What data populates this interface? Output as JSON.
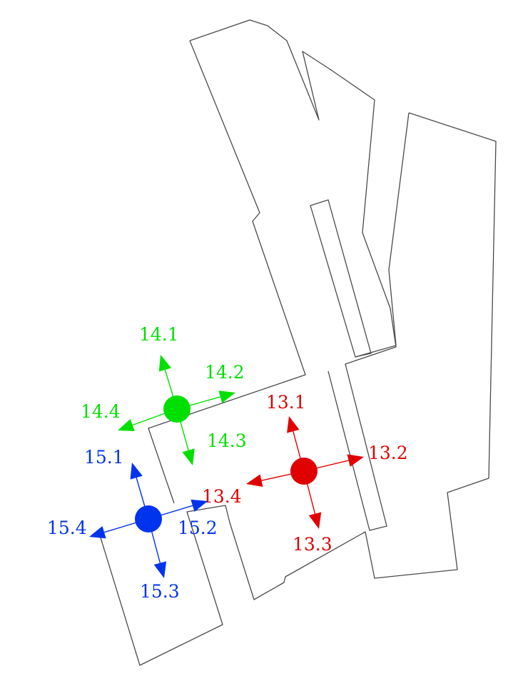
{
  "groups": [
    {
      "id": "13",
      "color": "#e00000",
      "arrows": [
        {
          "label": "13.1"
        },
        {
          "label": "13.2"
        },
        {
          "label": "13.3"
        },
        {
          "label": "13.4"
        }
      ]
    },
    {
      "id": "14",
      "color": "#00e000",
      "arrows": [
        {
          "label": "14.1"
        },
        {
          "label": "14.2"
        },
        {
          "label": "14.3"
        },
        {
          "label": "14.4"
        }
      ]
    },
    {
      "id": "15",
      "color": "#0033ee",
      "arrows": [
        {
          "label": "15.1"
        },
        {
          "label": "15.2"
        },
        {
          "label": "15.3"
        },
        {
          "label": "15.4"
        }
      ]
    }
  ]
}
